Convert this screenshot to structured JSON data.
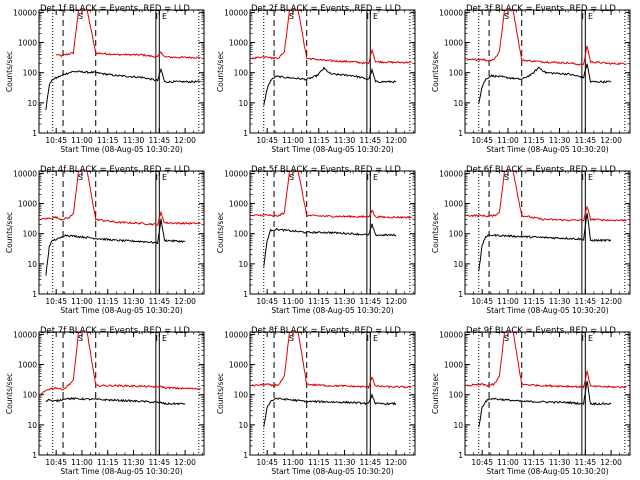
{
  "figure": {
    "start_time_label": "Start Time (08-Aug-05 10:30:20)",
    "ylabel": "Counts/sec",
    "title_suffix": "BLACK = Events, RED = LLD",
    "x_tick_labels": [
      "10:45",
      "11:00",
      "11:15",
      "11:30",
      "11:45",
      "12:00"
    ],
    "y_tick_labels": [
      "1",
      "10",
      "100",
      "1000",
      "10000"
    ],
    "colors": {
      "events": "#000000",
      "lld": "#e00000",
      "axes": "#000000"
    },
    "marker_letters": [
      "S",
      "I",
      "E"
    ]
  },
  "chart_data": [
    {
      "type": "line",
      "title": "Det 1f BLACK = Events, RED = LLD",
      "xlabel": "Start Time (08-Aug-05 10:30:20)",
      "ylabel": "Counts/sec",
      "xlim": [
        "10:35",
        "12:11"
      ],
      "ylim": [
        1,
        12000
      ],
      "yscale": "log",
      "series": [
        {
          "name": "LLD",
          "color": "#e00000",
          "x": [
            "10:45",
            "10:48",
            "10:52",
            "10:55",
            "10:58",
            "11:03",
            "11:08",
            "11:20",
            "11:35",
            "11:44",
            "11:46",
            "11:48",
            "12:00",
            "12:09"
          ],
          "values": [
            400,
            360,
            420,
            450,
            12000,
            12000,
            450,
            400,
            390,
            330,
            500,
            330,
            320,
            320
          ]
        },
        {
          "name": "Events",
          "color": "#000000",
          "x": [
            "10:39",
            "10:41",
            "10:43",
            "10:47",
            "10:50",
            "10:55",
            "11:08",
            "11:20",
            "11:35",
            "11:44",
            "11:46",
            "11:48",
            "12:09"
          ],
          "values": [
            6,
            40,
            60,
            75,
            90,
            110,
            100,
            80,
            70,
            55,
            130,
            50,
            50
          ]
        }
      ],
      "vlines_dotted": [
        "10:43",
        "12:08"
      ],
      "vlines_dashed": [
        "10:49",
        "11:08"
      ],
      "vlines_solid": [
        "11:43",
        "11:45"
      ]
    },
    {
      "type": "line",
      "title": "Det 2f BLACK = Events, RED = LLD",
      "xlabel": "Start Time (08-Aug-05 10:30:20)",
      "ylabel": "Counts/sec",
      "xlim": [
        "10:35",
        "12:11"
      ],
      "ylim": [
        1,
        12000
      ],
      "yscale": "log",
      "series": [
        {
          "name": "LLD",
          "color": "#e00000",
          "x": [
            "10:36",
            "10:45",
            "10:48",
            "10:52",
            "10:55",
            "10:58",
            "11:03",
            "11:08",
            "11:20",
            "11:35",
            "11:44",
            "11:46",
            "11:48",
            "12:00",
            "12:09"
          ],
          "values": [
            300,
            350,
            300,
            320,
            500,
            12000,
            12000,
            300,
            250,
            230,
            200,
            600,
            230,
            220,
            220
          ]
        },
        {
          "name": "Events",
          "color": "#000000",
          "x": [
            "10:43",
            "10:45",
            "10:47",
            "10:50",
            "11:08",
            "11:14",
            "11:18",
            "11:22",
            "11:35",
            "11:44",
            "11:46",
            "11:48",
            "12:00"
          ],
          "values": [
            8,
            30,
            55,
            75,
            60,
            80,
            140,
            90,
            80,
            60,
            120,
            50,
            50
          ]
        }
      ],
      "vlines_dotted": [
        "10:43",
        "12:08"
      ],
      "vlines_dashed": [
        "10:49",
        "11:08"
      ],
      "vlines_solid": [
        "11:43",
        "11:45"
      ]
    },
    {
      "type": "line",
      "title": "Det 3f BLACK = Events, RED = LLD",
      "xlabel": "Start Time (08-Aug-05 10:30:20)",
      "ylabel": "Counts/sec",
      "xlim": [
        "10:35",
        "12:11"
      ],
      "ylim": [
        1,
        12000
      ],
      "yscale": "log",
      "series": [
        {
          "name": "LLD",
          "color": "#e00000",
          "x": [
            "10:36",
            "10:45",
            "10:48",
            "10:52",
            "10:55",
            "10:58",
            "11:03",
            "11:08",
            "11:20",
            "11:35",
            "11:44",
            "11:46",
            "11:48",
            "12:00",
            "12:09"
          ],
          "values": [
            260,
            280,
            250,
            280,
            500,
            12000,
            12000,
            260,
            230,
            210,
            180,
            800,
            230,
            200,
            200
          ]
        },
        {
          "name": "Events",
          "color": "#000000",
          "x": [
            "10:43",
            "10:45",
            "10:47",
            "10:50",
            "11:08",
            "11:14",
            "11:18",
            "11:22",
            "11:35",
            "11:44",
            "11:46",
            "11:48",
            "12:00"
          ],
          "values": [
            10,
            35,
            60,
            80,
            60,
            90,
            150,
            100,
            90,
            70,
            200,
            50,
            50
          ]
        }
      ],
      "vlines_dotted": [
        "10:43",
        "12:08"
      ],
      "vlines_dashed": [
        "10:49",
        "11:08"
      ],
      "vlines_solid": [
        "11:43",
        "11:45"
      ]
    },
    {
      "type": "line",
      "title": "Det 4f BLACK = Events, RED = LLD",
      "xlabel": "Start Time (08-Aug-05 10:30:20)",
      "ylabel": "Counts/sec",
      "xlim": [
        "10:35",
        "12:11"
      ],
      "ylim": [
        1,
        12000
      ],
      "yscale": "log",
      "series": [
        {
          "name": "LLD",
          "color": "#e00000",
          "x": [
            "10:36",
            "10:45",
            "10:48",
            "10:52",
            "10:55",
            "10:58",
            "11:03",
            "11:08",
            "11:20",
            "11:35",
            "11:44",
            "11:46",
            "11:48",
            "12:00",
            "12:09"
          ],
          "values": [
            300,
            350,
            300,
            330,
            450,
            12000,
            12000,
            300,
            240,
            220,
            200,
            500,
            230,
            220,
            220
          ]
        },
        {
          "name": "Events",
          "color": "#000000",
          "x": [
            "10:39",
            "10:41",
            "10:43",
            "10:47",
            "10:50",
            "11:08",
            "11:20",
            "11:35",
            "11:44",
            "11:46",
            "11:48",
            "12:00"
          ],
          "values": [
            4,
            40,
            60,
            70,
            90,
            70,
            60,
            55,
            50,
            300,
            60,
            55
          ]
        }
      ],
      "vlines_dotted": [
        "10:43",
        "12:08"
      ],
      "vlines_dashed": [
        "10:49",
        "11:08"
      ],
      "vlines_solid": [
        "11:43",
        "11:45"
      ]
    },
    {
      "type": "line",
      "title": "Det 5f BLACK = Events, RED = LLD",
      "xlabel": "Start Time (08-Aug-05 10:30:20)",
      "ylabel": "Counts/sec",
      "xlim": [
        "10:35",
        "12:11"
      ],
      "ylim": [
        1,
        12000
      ],
      "yscale": "log",
      "series": [
        {
          "name": "LLD",
          "color": "#e00000",
          "x": [
            "10:36",
            "10:45",
            "10:48",
            "10:52",
            "10:55",
            "10:58",
            "11:03",
            "11:08",
            "11:20",
            "11:35",
            "11:44",
            "11:46",
            "11:48",
            "12:00",
            "12:09"
          ],
          "values": [
            400,
            420,
            380,
            400,
            500,
            12000,
            12000,
            400,
            380,
            370,
            360,
            600,
            360,
            350,
            350
          ]
        },
        {
          "name": "Events",
          "color": "#000000",
          "x": [
            "10:43",
            "10:45",
            "10:47",
            "10:50",
            "11:08",
            "11:20",
            "11:35",
            "11:44",
            "11:46",
            "11:48",
            "12:00"
          ],
          "values": [
            8,
            60,
            130,
            140,
            110,
            110,
            100,
            90,
            200,
            90,
            90
          ]
        }
      ],
      "vlines_dotted": [
        "10:43",
        "12:08"
      ],
      "vlines_dashed": [
        "10:49",
        "11:08"
      ],
      "vlines_solid": [
        "11:43",
        "11:45"
      ]
    },
    {
      "type": "line",
      "title": "Det 6f BLACK = Events, RED = LLD",
      "xlabel": "Start Time (08-Aug-05 10:30:20)",
      "ylabel": "Counts/sec",
      "xlim": [
        "10:35",
        "12:11"
      ],
      "ylim": [
        1,
        12000
      ],
      "yscale": "log",
      "series": [
        {
          "name": "LLD",
          "color": "#e00000",
          "x": [
            "10:36",
            "10:45",
            "10:48",
            "10:52",
            "10:55",
            "10:58",
            "11:03",
            "11:08",
            "11:20",
            "11:35",
            "11:44",
            "11:46",
            "11:48",
            "12:00",
            "12:09"
          ],
          "values": [
            400,
            400,
            380,
            400,
            500,
            12000,
            12000,
            400,
            300,
            280,
            280,
            800,
            300,
            280,
            280
          ]
        },
        {
          "name": "Events",
          "color": "#000000",
          "x": [
            "10:43",
            "10:45",
            "10:47",
            "10:50",
            "11:08",
            "11:20",
            "11:35",
            "11:44",
            "11:46",
            "11:48",
            "12:00"
          ],
          "values": [
            6,
            40,
            80,
            90,
            80,
            75,
            70,
            65,
            500,
            60,
            60
          ]
        }
      ],
      "vlines_dotted": [
        "10:43",
        "12:08"
      ],
      "vlines_dashed": [
        "10:49",
        "11:08"
      ],
      "vlines_solid": [
        "11:43",
        "11:45"
      ]
    },
    {
      "type": "line",
      "title": "Det 7f BLACK = Events, RED = LLD",
      "xlabel": "Start Time (08-Aug-05 10:30:20)",
      "ylabel": "Counts/sec",
      "xlim": [
        "10:35",
        "12:11"
      ],
      "ylim": [
        1,
        12000
      ],
      "yscale": "log",
      "series": [
        {
          "name": "LLD",
          "color": "#e00000",
          "x": [
            "10:36",
            "10:40",
            "10:45",
            "10:48",
            "10:50",
            "10:55",
            "10:58",
            "11:03",
            "11:08",
            "11:20",
            "11:35",
            "11:44",
            "11:46",
            "11:48",
            "12:00",
            "12:09"
          ],
          "values": [
            100,
            150,
            170,
            150,
            160,
            300,
            12000,
            12000,
            200,
            200,
            190,
            180,
            190,
            170,
            160,
            160
          ]
        },
        {
          "name": "Events",
          "color": "#000000",
          "x": [
            "10:39",
            "10:41",
            "10:43",
            "10:47",
            "10:50",
            "11:08",
            "11:20",
            "11:35",
            "11:44",
            "11:46",
            "11:48",
            "12:00"
          ],
          "values": [
            60,
            70,
            60,
            65,
            75,
            70,
            65,
            60,
            55,
            55,
            50,
            50
          ]
        }
      ],
      "vlines_dotted": [
        "10:43",
        "12:08"
      ],
      "vlines_dashed": [
        "10:49",
        "11:08"
      ],
      "vlines_solid": [
        "11:43",
        "11:45"
      ]
    },
    {
      "type": "line",
      "title": "Det 8f BLACK = Events, RED = LLD",
      "xlabel": "Start Time (08-Aug-05 10:30:20)",
      "ylabel": "Counts/sec",
      "xlim": [
        "10:35",
        "12:11"
      ],
      "ylim": [
        1,
        12000
      ],
      "yscale": "log",
      "series": [
        {
          "name": "LLD",
          "color": "#e00000",
          "x": [
            "10:36",
            "10:45",
            "10:48",
            "10:52",
            "10:55",
            "10:58",
            "11:03",
            "11:08",
            "11:20",
            "11:35",
            "11:44",
            "11:46",
            "11:48",
            "12:00",
            "12:09"
          ],
          "values": [
            200,
            220,
            200,
            220,
            400,
            12000,
            12000,
            220,
            200,
            190,
            180,
            400,
            190,
            180,
            180
          ]
        },
        {
          "name": "Events",
          "color": "#000000",
          "x": [
            "10:43",
            "10:45",
            "10:47",
            "10:50",
            "11:08",
            "11:20",
            "11:35",
            "11:44",
            "11:46",
            "11:48",
            "12:00"
          ],
          "values": [
            8,
            40,
            60,
            75,
            60,
            58,
            55,
            50,
            100,
            50,
            50
          ]
        }
      ],
      "vlines_dotted": [
        "10:43",
        "12:08"
      ],
      "vlines_dashed": [
        "10:49",
        "11:08"
      ],
      "vlines_solid": [
        "11:43",
        "11:45"
      ]
    },
    {
      "type": "line",
      "title": "Det 9f BLACK = Events, RED = LLD",
      "xlabel": "Start Time (08-Aug-05 10:30:20)",
      "ylabel": "Counts/sec",
      "xlim": [
        "10:35",
        "12:11"
      ],
      "ylim": [
        1,
        12000
      ],
      "yscale": "log",
      "series": [
        {
          "name": "LLD",
          "color": "#e00000",
          "x": [
            "10:36",
            "10:45",
            "10:48",
            "10:52",
            "10:55",
            "10:58",
            "11:03",
            "11:08",
            "11:20",
            "11:35",
            "11:44",
            "11:46",
            "11:48",
            "12:00",
            "12:09"
          ],
          "values": [
            200,
            220,
            200,
            220,
            400,
            12000,
            12000,
            220,
            200,
            190,
            180,
            600,
            190,
            180,
            180
          ]
        },
        {
          "name": "Events",
          "color": "#000000",
          "x": [
            "10:43",
            "10:45",
            "10:47",
            "10:50",
            "11:08",
            "11:20",
            "11:35",
            "11:44",
            "11:46",
            "11:48",
            "12:00"
          ],
          "values": [
            8,
            40,
            60,
            75,
            60,
            58,
            55,
            50,
            300,
            50,
            50
          ]
        }
      ],
      "vlines_dotted": [
        "10:43",
        "12:08"
      ],
      "vlines_dashed": [
        "10:49",
        "11:08"
      ],
      "vlines_solid": [
        "11:43",
        "11:45"
      ]
    }
  ]
}
